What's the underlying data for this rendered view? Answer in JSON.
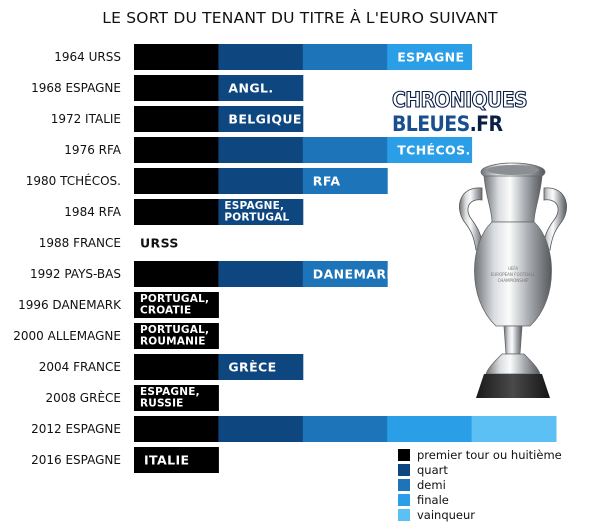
{
  "title": "LE SORT DU TENANT DU TITRE À L'EURO SUIVANT",
  "watermark": {
    "part1": "CHRONIQUES",
    "part2": "BLEUES",
    "part3": ".FR"
  },
  "trophy_text": [
    "UEFA",
    "EUROPEAN FOOTBALL",
    "CHAMPIONSHIP"
  ],
  "colors": {
    "premier tour ou huitième": "#000000",
    "quart": "#0e4680",
    "demi": "#1d74b8",
    "finale": "#2a9ee6",
    "vainqueur": "#5cc0f5"
  },
  "chart_data": {
    "type": "bar",
    "title": "LE SORT DU TENANT DU TITRE À L'EURO SUIVANT",
    "xlabel": "",
    "ylabel": "",
    "stages": [
      "premier tour ou huitième",
      "quart",
      "demi",
      "finale",
      "vainqueur"
    ],
    "legend": [
      "premier tour ou huitième",
      "quart",
      "demi",
      "finale",
      "vainqueur"
    ],
    "legend_position": "bottom-right",
    "grid": false,
    "categories": [
      "1964 URSS",
      "1968 ESPAGNE",
      "1972 ITALIE",
      "1976 RFA",
      "1980 TCHÉCOS.",
      "1984 RFA",
      "1988 FRANCE",
      "1992 PAYS-BAS",
      "1996 DANEMARK",
      "2000 ALLEMAGNE",
      "2004 FRANCE",
      "2008 GRÈCE",
      "2012 ESPAGNE",
      "2016 ESPAGNE"
    ],
    "values": [
      4,
      2,
      2,
      4,
      3,
      2,
      0,
      3,
      1,
      1,
      2,
      1,
      5,
      1
    ],
    "eliminated_by": [
      [
        "ESPAGNE"
      ],
      [
        "ANGL."
      ],
      [
        "BELGIQUE"
      ],
      [
        "TCHÉCOS."
      ],
      [
        "RFA"
      ],
      [
        "ESPAGNE,",
        "PORTUGAL"
      ],
      [
        "URSS"
      ],
      [
        "DANEMARK"
      ],
      [
        "PORTUGAL,",
        "CROATIE"
      ],
      [
        "PORTUGAL,",
        "ROUMANIE"
      ],
      [
        "GRÈCE"
      ],
      [
        "ESPAGNE,",
        "RUSSIE"
      ],
      [],
      [
        "ITALIE"
      ]
    ]
  }
}
